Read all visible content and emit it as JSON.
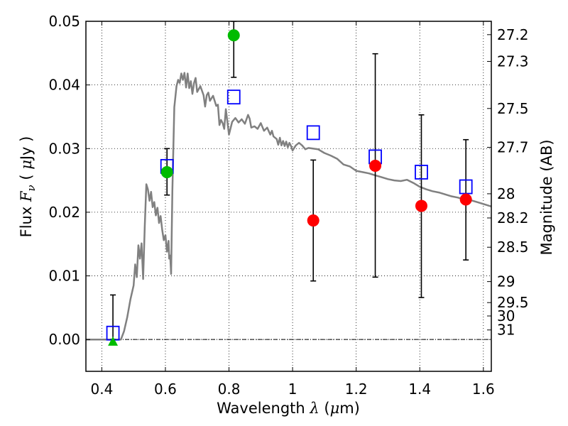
{
  "chart_data": {
    "type": "scatter",
    "xlabel": "Wavelength  λ (μm)",
    "ylabel": "Flux  F_ν  ( μJy )",
    "y2label": "Magnitude (AB)",
    "xlim": [
      0.35,
      1.625
    ],
    "ylim": [
      -0.005,
      0.05
    ],
    "grid": true,
    "x_ticks": [
      0.4,
      0.6,
      0.8,
      1.0,
      1.2,
      1.4,
      1.6
    ],
    "x_tick_labels": [
      "0.4",
      "0.6",
      "0.8",
      "1",
      "1.2",
      "1.4",
      "1.6"
    ],
    "y_ticks": [
      0.0,
      0.01,
      0.02,
      0.03,
      0.04,
      0.05
    ],
    "y_tick_labels": [
      "0.00",
      "0.01",
      "0.02",
      "0.03",
      "0.04",
      "0.05"
    ],
    "mag_ticks": [
      {
        "label": "27.2",
        "flux": 0.0479
      },
      {
        "label": "27.3",
        "flux": 0.0437
      },
      {
        "label": "27.5",
        "flux": 0.0363
      },
      {
        "label": "27.7",
        "flux": 0.0302
      },
      {
        "label": "28",
        "flux": 0.0229
      },
      {
        "label": "28.2",
        "flux": 0.0191
      },
      {
        "label": "28.5",
        "flux": 0.0145
      },
      {
        "label": "29",
        "flux": 0.0091
      },
      {
        "label": "29.5",
        "flux": 0.0058
      },
      {
        "label": "30",
        "flux": 0.0037
      },
      {
        "label": "31",
        "flux": 0.0015
      }
    ],
    "series": [
      {
        "kind": "line",
        "color": "#808080",
        "points": [
          [
            0.35,
            0.0
          ],
          [
            0.46,
            0.0
          ],
          [
            0.47,
            0.0013
          ],
          [
            0.48,
            0.0035
          ],
          [
            0.49,
            0.0063
          ],
          [
            0.5,
            0.0085
          ],
          [
            0.505,
            0.0118
          ],
          [
            0.51,
            0.0098
          ],
          [
            0.515,
            0.0148
          ],
          [
            0.52,
            0.0127
          ],
          [
            0.525,
            0.0151
          ],
          [
            0.53,
            0.0095
          ],
          [
            0.535,
            0.0178
          ],
          [
            0.54,
            0.0244
          ],
          [
            0.545,
            0.0236
          ],
          [
            0.55,
            0.0218
          ],
          [
            0.555,
            0.0232
          ],
          [
            0.56,
            0.0208
          ],
          [
            0.565,
            0.0216
          ],
          [
            0.57,
            0.0195
          ],
          [
            0.575,
            0.0207
          ],
          [
            0.58,
            0.0183
          ],
          [
            0.585,
            0.0194
          ],
          [
            0.59,
            0.0172
          ],
          [
            0.595,
            0.0156
          ],
          [
            0.6,
            0.0164
          ],
          [
            0.605,
            0.0138
          ],
          [
            0.61,
            0.0155
          ],
          [
            0.612,
            0.0127
          ],
          [
            0.615,
            0.0132
          ],
          [
            0.618,
            0.0103
          ],
          [
            0.622,
            0.0235
          ],
          [
            0.628,
            0.0365
          ],
          [
            0.635,
            0.0398
          ],
          [
            0.64,
            0.0408
          ],
          [
            0.645,
            0.0403
          ],
          [
            0.65,
            0.0418
          ],
          [
            0.655,
            0.0408
          ],
          [
            0.66,
            0.0419
          ],
          [
            0.665,
            0.0396
          ],
          [
            0.67,
            0.0418
          ],
          [
            0.675,
            0.0395
          ],
          [
            0.68,
            0.0406
          ],
          [
            0.685,
            0.0386
          ],
          [
            0.69,
            0.0403
          ],
          [
            0.695,
            0.0411
          ],
          [
            0.7,
            0.0389
          ],
          [
            0.71,
            0.0398
          ],
          [
            0.72,
            0.0384
          ],
          [
            0.725,
            0.0366
          ],
          [
            0.73,
            0.0384
          ],
          [
            0.735,
            0.0388
          ],
          [
            0.74,
            0.0375
          ],
          [
            0.75,
            0.0383
          ],
          [
            0.76,
            0.0367
          ],
          [
            0.765,
            0.0369
          ],
          [
            0.77,
            0.0337
          ],
          [
            0.775,
            0.0345
          ],
          [
            0.78,
            0.034
          ],
          [
            0.785,
            0.0331
          ],
          [
            0.79,
            0.0362
          ],
          [
            0.8,
            0.0322
          ],
          [
            0.81,
            0.0342
          ],
          [
            0.82,
            0.0348
          ],
          [
            0.83,
            0.0341
          ],
          [
            0.84,
            0.0346
          ],
          [
            0.85,
            0.0339
          ],
          [
            0.86,
            0.0353
          ],
          [
            0.865,
            0.0347
          ],
          [
            0.87,
            0.0333
          ],
          [
            0.88,
            0.0335
          ],
          [
            0.89,
            0.0331
          ],
          [
            0.9,
            0.034
          ],
          [
            0.91,
            0.0328
          ],
          [
            0.92,
            0.0333
          ],
          [
            0.93,
            0.0322
          ],
          [
            0.935,
            0.0328
          ],
          [
            0.94,
            0.0319
          ],
          [
            0.95,
            0.0315
          ],
          [
            0.955,
            0.0306
          ],
          [
            0.96,
            0.0317
          ],
          [
            0.965,
            0.0305
          ],
          [
            0.97,
            0.0312
          ],
          [
            0.975,
            0.0304
          ],
          [
            0.98,
            0.0311
          ],
          [
            0.985,
            0.0302
          ],
          [
            0.99,
            0.0309
          ],
          [
            0.995,
            0.0304
          ],
          [
            1.0,
            0.0297
          ],
          [
            1.01,
            0.0305
          ],
          [
            1.02,
            0.0309
          ],
          [
            1.03,
            0.0305
          ],
          [
            1.04,
            0.0299
          ],
          [
            1.05,
            0.0301
          ],
          [
            1.08,
            0.0299
          ],
          [
            1.1,
            0.0293
          ],
          [
            1.12,
            0.0289
          ],
          [
            1.14,
            0.0284
          ],
          [
            1.16,
            0.0275
          ],
          [
            1.18,
            0.0272
          ],
          [
            1.2,
            0.0265
          ],
          [
            1.22,
            0.0263
          ],
          [
            1.24,
            0.0261
          ],
          [
            1.26,
            0.0258
          ],
          [
            1.28,
            0.0255
          ],
          [
            1.3,
            0.0252
          ],
          [
            1.32,
            0.025
          ],
          [
            1.34,
            0.0249
          ],
          [
            1.36,
            0.0251
          ],
          [
            1.38,
            0.0246
          ],
          [
            1.4,
            0.024
          ],
          [
            1.42,
            0.0236
          ],
          [
            1.44,
            0.0233
          ],
          [
            1.46,
            0.0231
          ],
          [
            1.48,
            0.0228
          ],
          [
            1.5,
            0.0225
          ],
          [
            1.52,
            0.0223
          ],
          [
            1.54,
            0.022
          ],
          [
            1.56,
            0.0219
          ],
          [
            1.58,
            0.0216
          ],
          [
            1.6,
            0.0213
          ],
          [
            1.625,
            0.0209
          ]
        ]
      },
      {
        "kind": "errorbar",
        "color": "#000000",
        "bars": [
          {
            "x": 0.435,
            "lo": 0.0,
            "hi": 0.007
          },
          {
            "x": 0.605,
            "lo": 0.0227,
            "hi": 0.03
          },
          {
            "x": 0.815,
            "lo": 0.0412,
            "hi": 0.05
          },
          {
            "x": 1.065,
            "lo": 0.0092,
            "hi": 0.0282
          },
          {
            "x": 1.26,
            "lo": 0.0098,
            "hi": 0.0449
          },
          {
            "x": 1.405,
            "lo": 0.0066,
            "hi": 0.0353
          },
          {
            "x": 1.545,
            "lo": 0.0125,
            "hi": 0.0314
          }
        ]
      },
      {
        "kind": "marker",
        "shape": "open-square",
        "color": "#0000ff",
        "points": [
          [
            0.435,
            0.001
          ],
          [
            0.605,
            0.0272
          ],
          [
            0.815,
            0.0381
          ],
          [
            1.065,
            0.0325
          ],
          [
            1.26,
            0.0287
          ],
          [
            1.405,
            0.0263
          ],
          [
            1.545,
            0.024
          ]
        ]
      },
      {
        "kind": "marker",
        "shape": "circle",
        "color": "#00bb00",
        "points": [
          [
            0.605,
            0.0263
          ],
          [
            0.815,
            0.0478
          ]
        ]
      },
      {
        "kind": "marker",
        "shape": "triangle",
        "color": "#00bb00",
        "points": [
          [
            0.435,
            -0.0003
          ]
        ]
      },
      {
        "kind": "marker",
        "shape": "circle",
        "color": "#ff0000",
        "points": [
          [
            1.065,
            0.0187
          ],
          [
            1.26,
            0.0273
          ],
          [
            1.405,
            0.021
          ],
          [
            1.545,
            0.022
          ]
        ]
      }
    ]
  }
}
